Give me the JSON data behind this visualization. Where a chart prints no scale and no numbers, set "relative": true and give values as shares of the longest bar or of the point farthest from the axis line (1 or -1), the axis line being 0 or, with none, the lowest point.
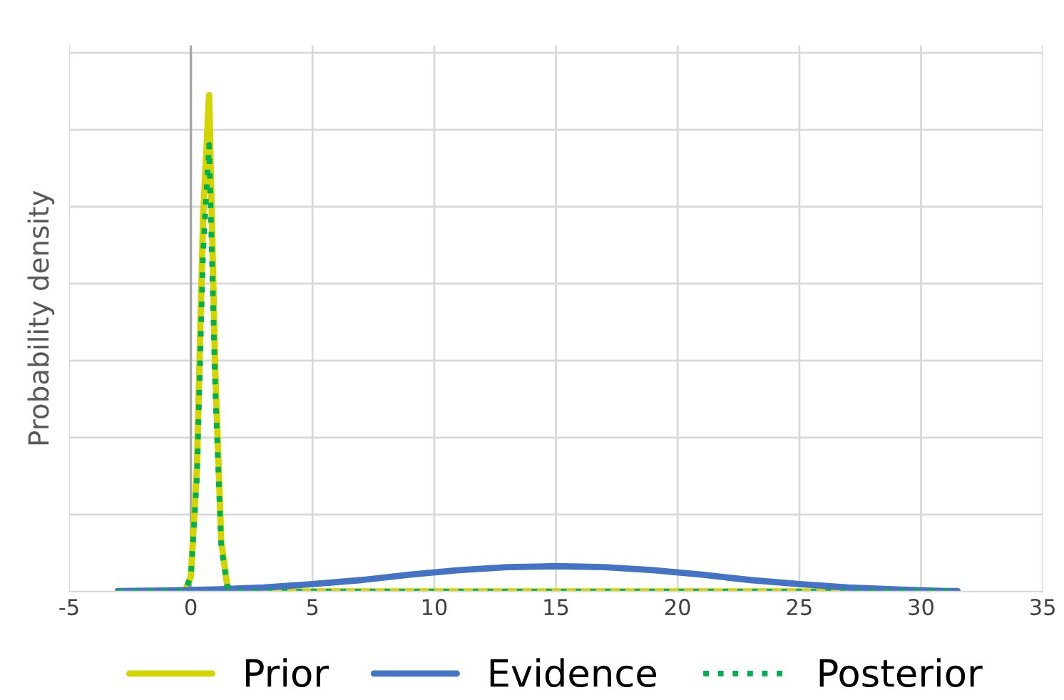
{
  "chart_data": {
    "type": "line",
    "relative": true,
    "ylabel": "Probability density",
    "xlim": [
      -5,
      35
    ],
    "xticks": [
      -5,
      0,
      5,
      10,
      15,
      20,
      25,
      30,
      35
    ],
    "grid": true,
    "legend": "bottom",
    "marker": "none",
    "series": [
      {
        "name": "Prior",
        "color": "#d4d400",
        "line_style": "solid",
        "x": [
          -3,
          -0.25,
          0,
          0.25,
          0.5,
          0.75,
          1,
          1.25,
          1.5,
          1.75,
          31.5
        ],
        "values": [
          0,
          0,
          0.03,
          0.25,
          0.75,
          1.0,
          0.45,
          0.1,
          0.01,
          0,
          0
        ]
      },
      {
        "name": "Evidence",
        "color": "#4472c4",
        "line_style": "solid",
        "x": [
          -3,
          -1,
          1,
          3,
          5,
          7,
          9,
          11,
          13,
          15,
          17,
          19,
          21,
          23,
          25,
          27,
          29,
          31,
          31.5
        ],
        "values": [
          0.001,
          0.002,
          0.004,
          0.008,
          0.015,
          0.023,
          0.034,
          0.043,
          0.049,
          0.051,
          0.049,
          0.043,
          0.034,
          0.023,
          0.015,
          0.008,
          0.004,
          0.001,
          0.001
        ]
      },
      {
        "name": "Posterior",
        "color": "#00b050",
        "line_style": "dotted",
        "x": [
          -3,
          -0.25,
          0,
          0.25,
          0.5,
          0.75,
          1,
          1.25,
          1.5,
          1.75,
          31.5
        ],
        "values": [
          0,
          0,
          0.03,
          0.23,
          0.68,
          0.9,
          0.41,
          0.09,
          0.01,
          0,
          0
        ]
      }
    ]
  }
}
